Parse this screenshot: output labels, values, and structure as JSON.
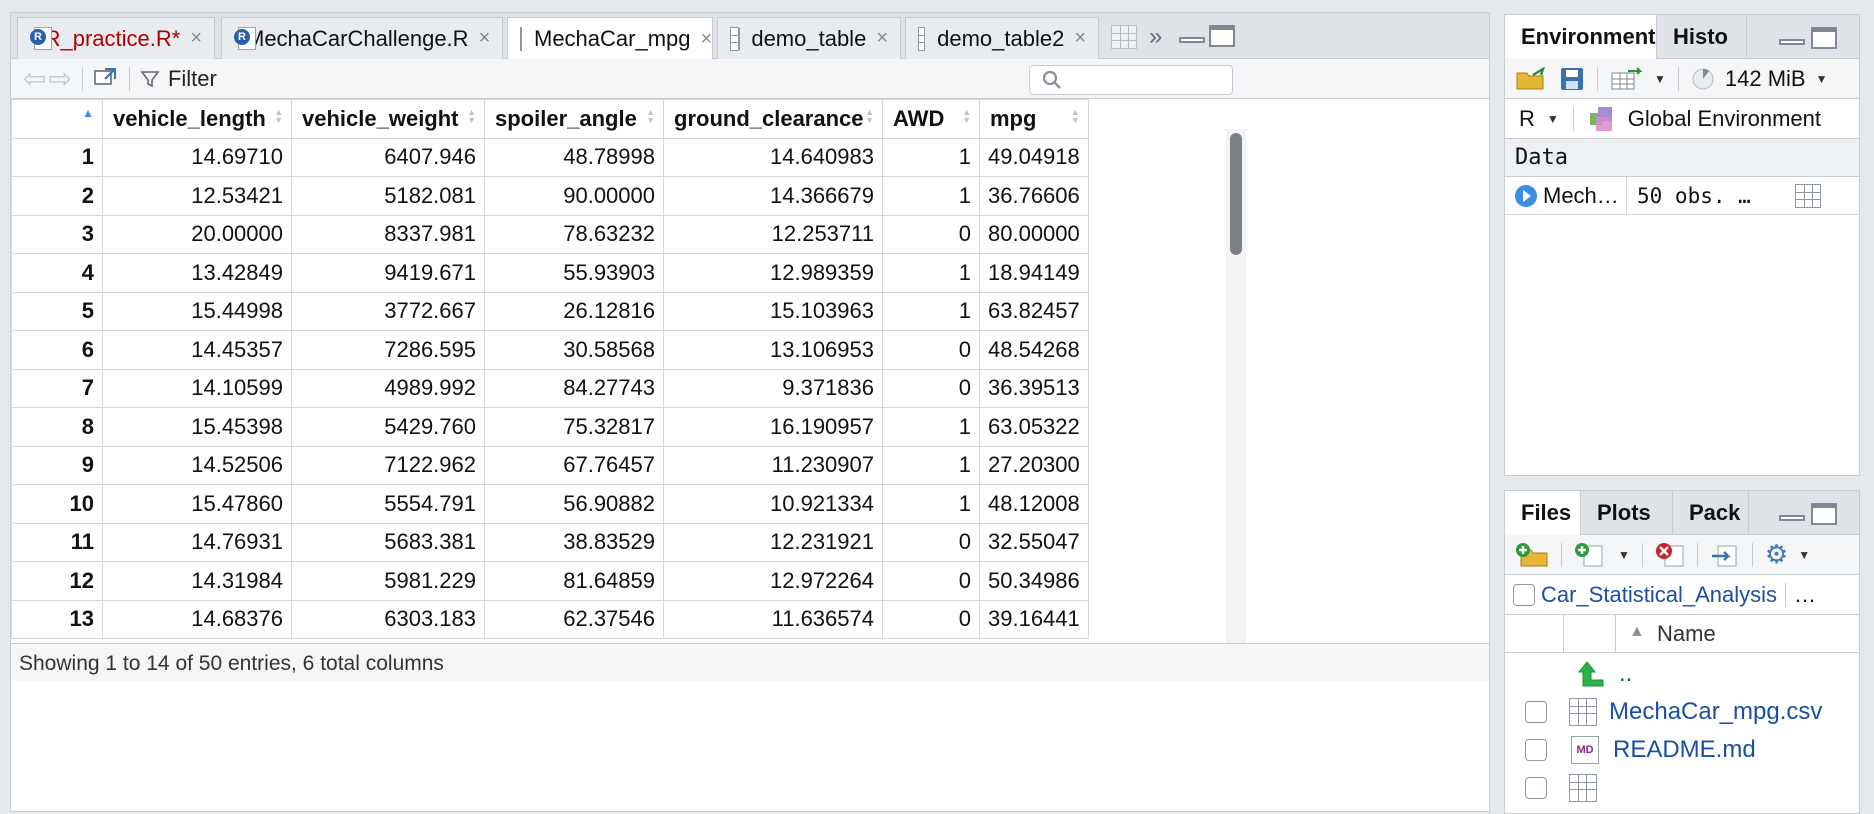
{
  "editor": {
    "tabs": [
      {
        "label": "R_practice.R*",
        "type": "r",
        "modified": true
      },
      {
        "label": "MechaCarChallenge.R",
        "type": "r"
      },
      {
        "label": "MechaCar_mpg",
        "type": "table",
        "active": true
      },
      {
        "label": "demo_table",
        "type": "table"
      },
      {
        "label": "demo_table2",
        "type": "table"
      }
    ],
    "close_glyph": "×",
    "more_glyph": "»"
  },
  "viewer": {
    "filter_label": "Filter",
    "search_placeholder": "",
    "columns": [
      "vehicle_length",
      "vehicle_weight",
      "spoiler_angle",
      "ground_clearance",
      "AWD",
      "mpg"
    ],
    "rows": [
      [
        "1",
        "14.69710",
        "6407.946",
        "48.78998",
        "14.640983",
        "1",
        "49.04918"
      ],
      [
        "2",
        "12.53421",
        "5182.081",
        "90.00000",
        "14.366679",
        "1",
        "36.76606"
      ],
      [
        "3",
        "20.00000",
        "8337.981",
        "78.63232",
        "12.253711",
        "0",
        "80.00000"
      ],
      [
        "4",
        "13.42849",
        "9419.671",
        "55.93903",
        "12.989359",
        "1",
        "18.94149"
      ],
      [
        "5",
        "15.44998",
        "3772.667",
        "26.12816",
        "15.103963",
        "1",
        "63.82457"
      ],
      [
        "6",
        "14.45357",
        "7286.595",
        "30.58568",
        "13.106953",
        "0",
        "48.54268"
      ],
      [
        "7",
        "14.10599",
        "4989.992",
        "84.27743",
        "9.371836",
        "0",
        "36.39513"
      ],
      [
        "8",
        "15.45398",
        "5429.760",
        "75.32817",
        "16.190957",
        "1",
        "63.05322"
      ],
      [
        "9",
        "14.52506",
        "7122.962",
        "67.76457",
        "11.230907",
        "1",
        "27.20300"
      ],
      [
        "10",
        "15.47860",
        "5554.791",
        "56.90882",
        "10.921334",
        "1",
        "48.12008"
      ],
      [
        "11",
        "14.76931",
        "5683.381",
        "38.83529",
        "12.231921",
        "0",
        "32.55047"
      ],
      [
        "12",
        "14.31984",
        "5981.229",
        "81.64859",
        "12.972264",
        "0",
        "50.34986"
      ],
      [
        "13",
        "14.68376",
        "6303.183",
        "62.37546",
        "11.636574",
        "0",
        "39.16441"
      ]
    ],
    "status": "Showing 1 to 14 of 50 entries, 6 total columns"
  },
  "environment": {
    "tabs": [
      "Environment",
      "Histo"
    ],
    "memory": "142 MiB",
    "language": "R",
    "scope": "Global Environment",
    "section": "Data",
    "items": [
      {
        "name": "Mech…",
        "value": "50 obs. …"
      }
    ]
  },
  "files": {
    "tabs": [
      "Files",
      "Plots",
      "Pack"
    ],
    "path": "Car_Statistical_Analysis",
    "path_more": "…",
    "name_header": "Name",
    "up_label": "..",
    "items": [
      {
        "name": "MechaCar_mpg.csv",
        "type": "table"
      },
      {
        "name": "README.md",
        "type": "md"
      }
    ],
    "md_badge": "MD"
  },
  "colors": {
    "accent": "#3a8ee6",
    "link": "#1a4fa3",
    "modified": "#b30000"
  }
}
